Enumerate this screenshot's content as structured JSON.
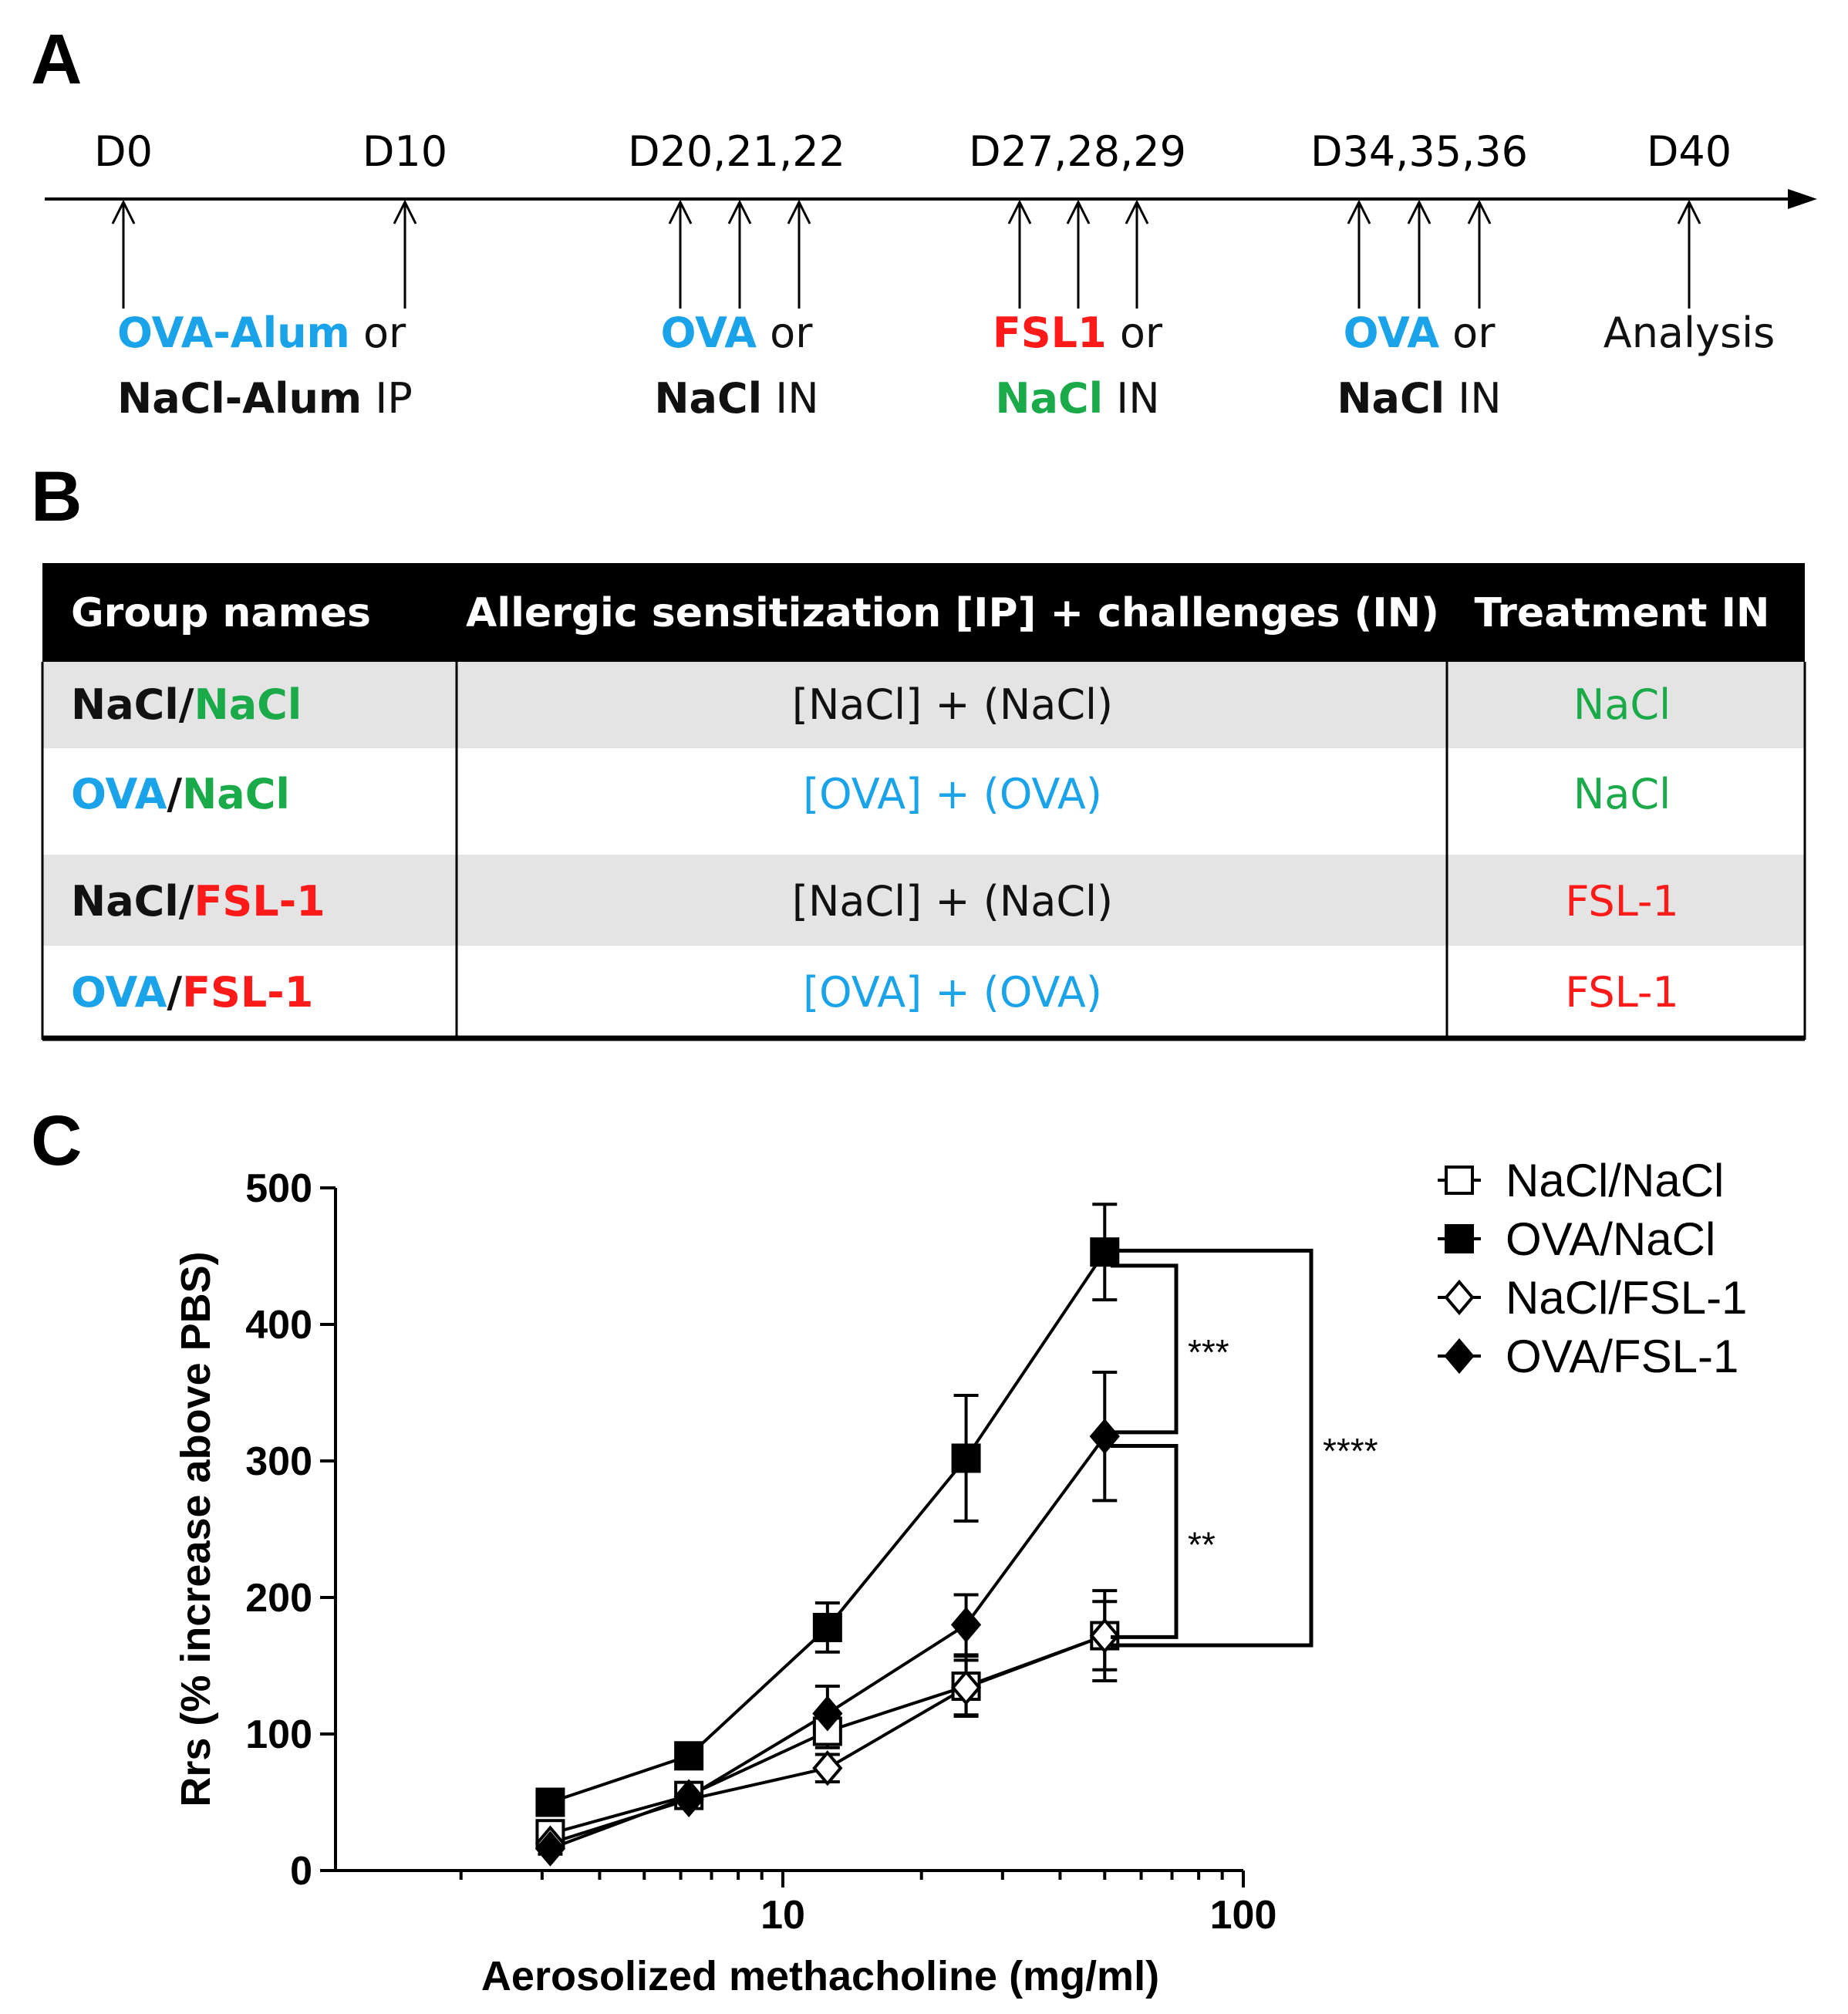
{
  "panels": {
    "a": "A",
    "b": "B",
    "c": "C"
  },
  "colors": {
    "blue": "#1aa3e8",
    "red": "#ff1a1a",
    "green": "#1aaa4a",
    "black": "#111111"
  },
  "timeline": {
    "days": [
      "D0",
      "D10",
      "D20,21,22",
      "D27,28,29",
      "D34,35,36",
      "D40"
    ],
    "events": {
      "e0_l1_a": "OVA-Alum",
      "e0_l1_b": " or",
      "e0_l2_a": "NaCl-Alum",
      "e0_l2_b": " IP",
      "e1_l1_a": "OVA",
      "e1_l1_b": " or",
      "e1_l2_a": "NaCl",
      "e1_l2_b": " IN",
      "e2_l1_a": "FSL1",
      "e2_l1_b": " or",
      "e2_l2_a": "NaCl",
      "e2_l2_b": " IN",
      "e3_l1_a": "OVA",
      "e3_l1_b": " or",
      "e3_l2_a": "NaCl",
      "e3_l2_b": " IN",
      "e4": "Analysis"
    }
  },
  "table": {
    "headers": [
      "Group names",
      "Allergic sensitization [IP] + challenges (IN)",
      "Treatment IN"
    ],
    "rows": [
      {
        "g1": "NaCl",
        "sep": "/",
        "g2": "NaCl",
        "sens": "[NaCl] + (NaCl)",
        "treat": "NaCl"
      },
      {
        "g1": "OVA",
        "sep": "/",
        "g2": "NaCl",
        "sens": "[OVA] + (OVA)",
        "treat": "NaCl"
      },
      {
        "g1": "NaCl",
        "sep": "/",
        "g2": "FSL-1",
        "sens": "[NaCl] + (NaCl)",
        "treat": "FSL-1"
      },
      {
        "g1": "OVA",
        "sep": "/",
        "g2": "FSL-1",
        "sens": "[OVA] + (OVA)",
        "treat": "FSL-1"
      }
    ]
  },
  "chart_data": {
    "type": "line",
    "xscale": "log",
    "xlabel": "Aerosolized methacholine (mg/ml)",
    "ylabel": "Rrs (% increase above PBS)",
    "xlim": [
      1,
      100
    ],
    "ylim": [
      0,
      500
    ],
    "xticks": [
      10,
      100
    ],
    "yticks": [
      0,
      100,
      200,
      300,
      400,
      500
    ],
    "x": [
      3.125,
      6.25,
      12.5,
      25,
      50
    ],
    "series": [
      {
        "name": "NaCl/NaCl",
        "marker": "square-open",
        "values": [
          27,
          55,
          102,
          135,
          172
        ],
        "errors": [
          5,
          6,
          12,
          22,
          33
        ]
      },
      {
        "name": "OVA/NaCl",
        "marker": "square-filled",
        "values": [
          50,
          84,
          178,
          302,
          453
        ],
        "errors": [
          6,
          8,
          18,
          46,
          35
        ]
      },
      {
        "name": "NaCl/FSL-1",
        "marker": "diamond-open",
        "values": [
          20,
          52,
          75,
          134,
          172
        ],
        "errors": [
          4,
          5,
          10,
          20,
          25
        ]
      },
      {
        "name": "OVA/FSL-1",
        "marker": "diamond-filled",
        "values": [
          16,
          54,
          115,
          180,
          318
        ],
        "errors": [
          4,
          6,
          20,
          22,
          47
        ]
      }
    ],
    "significance": [
      {
        "between": [
          "OVA/NaCl",
          "OVA/FSL-1"
        ],
        "label": "***"
      },
      {
        "between": [
          "OVA/FSL-1",
          "NaCl/FSL-1"
        ],
        "label": "**"
      },
      {
        "between": [
          "OVA/NaCl",
          "NaCl/FSL-1"
        ],
        "label": "****"
      }
    ]
  }
}
